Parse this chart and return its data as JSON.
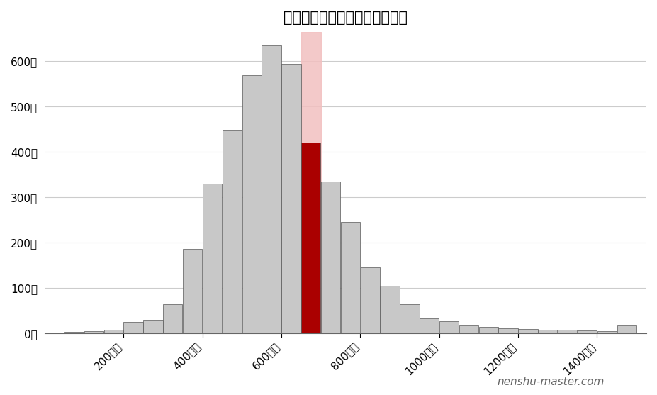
{
  "title": "レオン自動機の年収ポジション",
  "watermark": "nenshu-master.com",
  "highlight_bin_index": 13,
  "pink_range_start": 650,
  "pink_range_end": 700,
  "bin_starts": [
    0,
    50,
    100,
    150,
    200,
    250,
    300,
    350,
    400,
    450,
    500,
    550,
    600,
    650,
    700,
    750,
    800,
    850,
    900,
    950,
    1000,
    1050,
    1100,
    1150,
    1200,
    1250,
    1300,
    1350,
    1400,
    1450
  ],
  "counts": [
    1,
    2,
    4,
    8,
    25,
    30,
    64,
    186,
    330,
    448,
    570,
    635,
    595,
    421,
    335,
    245,
    145,
    104,
    63,
    33,
    26,
    18,
    14,
    11,
    9,
    8,
    7,
    6,
    5,
    18
  ],
  "bin_width": 50,
  "x_ticks": [
    200,
    400,
    600,
    800,
    1000,
    1200,
    1400
  ],
  "x_tick_labels": [
    "200万円",
    "400万円",
    "600万円",
    "800万円",
    "1000万円",
    "1200万円",
    "1400万円"
  ],
  "y_ticks": [
    0,
    100,
    200,
    300,
    400,
    500,
    600
  ],
  "y_tick_labels": [
    "0社",
    "100社",
    "200社",
    "300社",
    "400社",
    "500社",
    "600社"
  ],
  "ylim": [
    0,
    665
  ],
  "xlim": [
    0,
    1525
  ],
  "bar_color_normal": "#c8c8c8",
  "bar_color_highlight": "#aa0000",
  "bar_color_pink": "#f2c0c0",
  "bar_edge_color": "#555555",
  "background_color": "#ffffff",
  "grid_color": "#cccccc",
  "title_fontsize": 15,
  "tick_fontsize": 11,
  "watermark_fontsize": 11
}
